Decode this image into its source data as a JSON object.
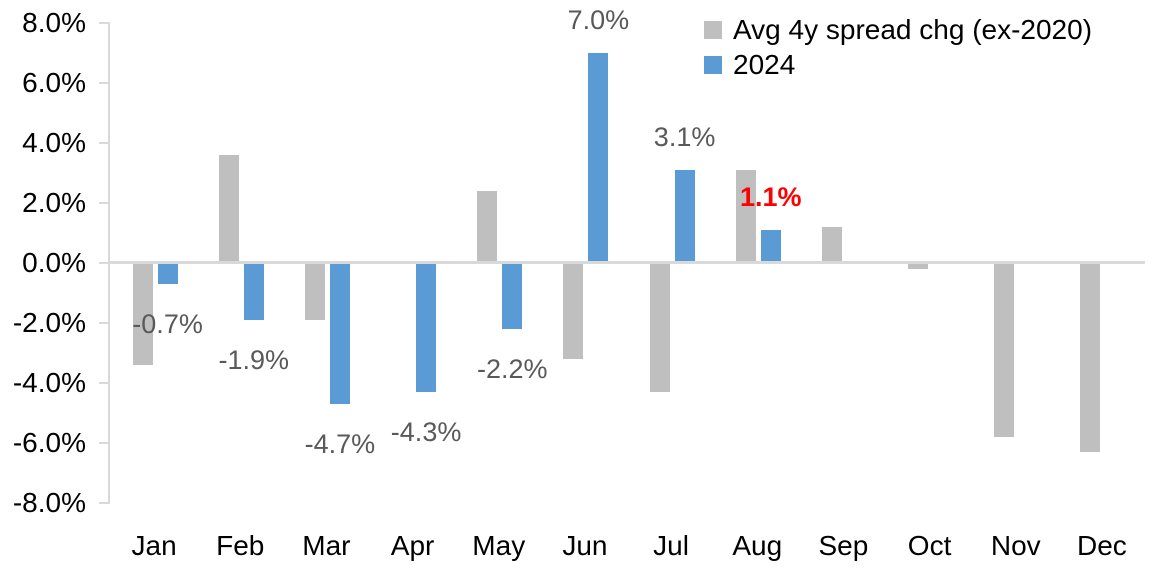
{
  "chart_data": {
    "type": "bar",
    "title": "",
    "categories": [
      "Jan",
      "Feb",
      "Mar",
      "Apr",
      "May",
      "Jun",
      "Jul",
      "Aug",
      "Sep",
      "Oct",
      "Nov",
      "Dec"
    ],
    "series": [
      {
        "name": "Avg 4y spread chg (ex-2020)",
        "color": "#bfbfbf",
        "values": [
          -3.4,
          3.6,
          -1.9,
          0.0,
          2.4,
          -3.2,
          -4.3,
          3.1,
          1.2,
          -0.2,
          -5.8,
          -6.3
        ]
      },
      {
        "name": "2024",
        "color": "#5b9bd5",
        "values": [
          -0.7,
          -1.9,
          -4.7,
          -4.3,
          -2.2,
          7.0,
          3.1,
          1.1,
          null,
          null,
          null,
          null
        ]
      }
    ],
    "data_labels": [
      {
        "index": 0,
        "text": "-0.7%",
        "color": "#595959",
        "bold": false
      },
      {
        "index": 1,
        "text": "-1.9%",
        "color": "#595959",
        "bold": false
      },
      {
        "index": 2,
        "text": "-4.7%",
        "color": "#595959",
        "bold": false
      },
      {
        "index": 3,
        "text": "-4.3%",
        "color": "#595959",
        "bold": false
      },
      {
        "index": 4,
        "text": "-2.2%",
        "color": "#595959",
        "bold": false
      },
      {
        "index": 5,
        "text": "7.0%",
        "color": "#595959",
        "bold": false
      },
      {
        "index": 6,
        "text": "3.1%",
        "color": "#595959",
        "bold": false
      },
      {
        "index": 7,
        "text": "1.1%",
        "color": "#ff0000",
        "bold": true
      }
    ],
    "ylim": [
      -8,
      8
    ],
    "ytick_step": 2,
    "ytick_labels": [
      "8.0%",
      "6.0%",
      "4.0%",
      "2.0%",
      "0.0%",
      "-2.0%",
      "-4.0%",
      "-6.0%",
      "-8.0%"
    ],
    "xlabel": "",
    "ylabel": "",
    "grid": false,
    "legend_position": "top-right",
    "axis_color": "#d9d9d9",
    "label_color": "#595959",
    "highlight_color": "#ff0000",
    "background": "#ffffff"
  }
}
